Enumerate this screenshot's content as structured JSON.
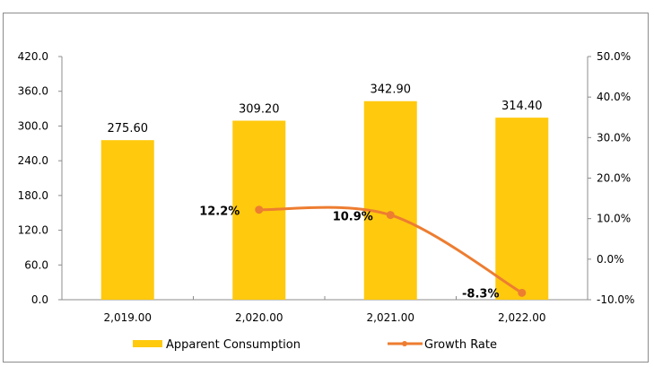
{
  "chart_data": {
    "type": "bar+line",
    "categories": [
      "2,019.00",
      "2,020.00",
      "2,021.00",
      "2,022.00"
    ],
    "series": [
      {
        "name": "Apparent Consumption",
        "type": "bar",
        "axis": "left",
        "color": "#FFC90E",
        "values": [
          275.6,
          309.2,
          342.9,
          314.4
        ],
        "labels": [
          "275.60",
          "309.20",
          "342.90",
          "314.40"
        ]
      },
      {
        "name": "Growth Rate",
        "type": "line",
        "axis": "right",
        "color": "#ED7D31",
        "values": [
          null,
          12.2,
          10.9,
          -8.3
        ],
        "labels": [
          "",
          "12.2%",
          "10.9%",
          "-8.3%"
        ]
      }
    ],
    "y_left": {
      "ylim": [
        0,
        420
      ],
      "ticks": [
        0,
        60,
        120,
        180,
        240,
        300,
        360,
        420
      ],
      "tick_labels": [
        "0.0",
        "60.0",
        "120.0",
        "180.0",
        "240.0",
        "300.0",
        "360.0",
        "420.0"
      ]
    },
    "y_right": {
      "ylim": [
        -10,
        50
      ],
      "ticks": [
        -10,
        0,
        10,
        20,
        30,
        40,
        50
      ],
      "tick_labels": [
        "-10.0%",
        "0.0%",
        "10.0%",
        "20.0%",
        "30.0%",
        "40.0%",
        "50.0%"
      ]
    },
    "legend_position": "bottom",
    "grid": false
  }
}
